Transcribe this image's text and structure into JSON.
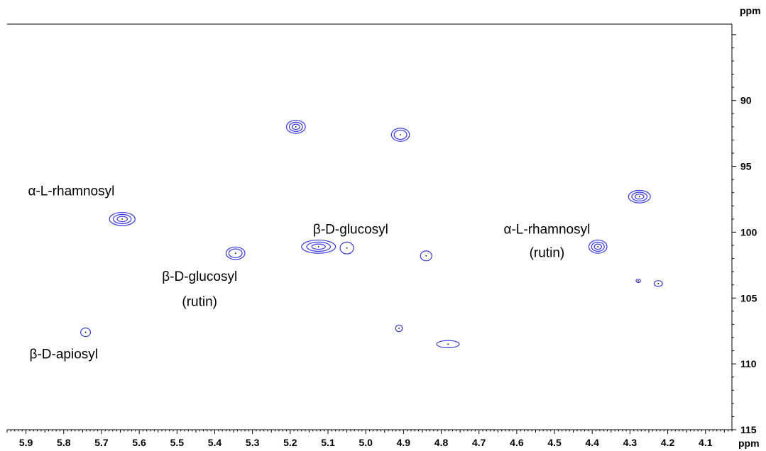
{
  "chart_data": {
    "type": "contour",
    "x_unit": "ppm",
    "y_unit": "ppm",
    "x_axis": {
      "reversed": true,
      "xlim": [
        5.95,
        4.03
      ],
      "ticks": [
        5.9,
        5.8,
        5.7,
        5.6,
        5.5,
        5.4,
        5.3,
        5.2,
        5.1,
        5.0,
        4.9,
        4.8,
        4.7,
        4.6,
        4.5,
        4.4,
        4.3,
        4.2,
        4.1
      ],
      "tick_labels": [
        "5.9",
        "5.8",
        "5.7",
        "5.6",
        "5.5",
        "5.4",
        "5.3",
        "5.2",
        "5.1",
        "5.0",
        "4.9",
        "4.8",
        "4.7",
        "4.6",
        "4.5",
        "4.4",
        "4.3",
        "4.2",
        "4.1"
      ]
    },
    "y_axis": {
      "reversed": true,
      "ylim": [
        84.2,
        115
      ],
      "ticks": [
        90,
        95,
        100,
        105,
        110,
        115
      ],
      "tick_labels": [
        "90",
        "95",
        "100",
        "105",
        "110",
        "115"
      ]
    },
    "contour_color": "#3b3bdc",
    "peaks": [
      {
        "x": 5.185,
        "y": 92.0,
        "w": 0.05,
        "h": 1.0,
        "levels": 3
      },
      {
        "x": 4.908,
        "y": 92.6,
        "w": 0.048,
        "h": 1.0,
        "levels": 2
      },
      {
        "x": 4.275,
        "y": 97.3,
        "w": 0.058,
        "h": 0.95,
        "levels": 3
      },
      {
        "x": 5.645,
        "y": 99.0,
        "w": 0.068,
        "h": 1.0,
        "levels": 3
      },
      {
        "x": 5.345,
        "y": 101.6,
        "w": 0.05,
        "h": 0.95,
        "levels": 2
      },
      {
        "x": 5.125,
        "y": 101.1,
        "w": 0.09,
        "h": 1.0,
        "levels": 3
      },
      {
        "x": 5.05,
        "y": 101.2,
        "w": 0.036,
        "h": 0.9,
        "levels": 1
      },
      {
        "x": 4.84,
        "y": 101.8,
        "w": 0.03,
        "h": 0.75,
        "levels": 1
      },
      {
        "x": 4.385,
        "y": 101.1,
        "w": 0.048,
        "h": 1.0,
        "levels": 3
      },
      {
        "x": 4.278,
        "y": 103.7,
        "w": 0.012,
        "h": 0.25,
        "levels": 1
      },
      {
        "x": 4.225,
        "y": 103.9,
        "w": 0.022,
        "h": 0.45,
        "levels": 1
      },
      {
        "x": 5.742,
        "y": 107.6,
        "w": 0.026,
        "h": 0.65,
        "levels": 1
      },
      {
        "x": 4.912,
        "y": 107.3,
        "w": 0.018,
        "h": 0.5,
        "levels": 1
      },
      {
        "x": 4.782,
        "y": 108.5,
        "w": 0.06,
        "h": 0.55,
        "levels": 1
      }
    ],
    "annotations": [
      {
        "text": "α-L-rhamnosyl",
        "x": 5.78,
        "y": 97.2
      },
      {
        "text": "β-D-glucosyl",
        "x": 5.44,
        "y": 103.7
      },
      {
        "text": "(rutin)",
        "x": 5.44,
        "y": 105.6
      },
      {
        "text": "β-D-glucosyl",
        "x": 5.04,
        "y": 100.1
      },
      {
        "text": "β-D-apiosyl",
        "x": 5.8,
        "y": 109.6
      },
      {
        "text": "α-L-rhamnosyl",
        "x": 4.52,
        "y": 100.1
      },
      {
        "text": "(rutin)",
        "x": 4.52,
        "y": 101.9
      }
    ]
  }
}
